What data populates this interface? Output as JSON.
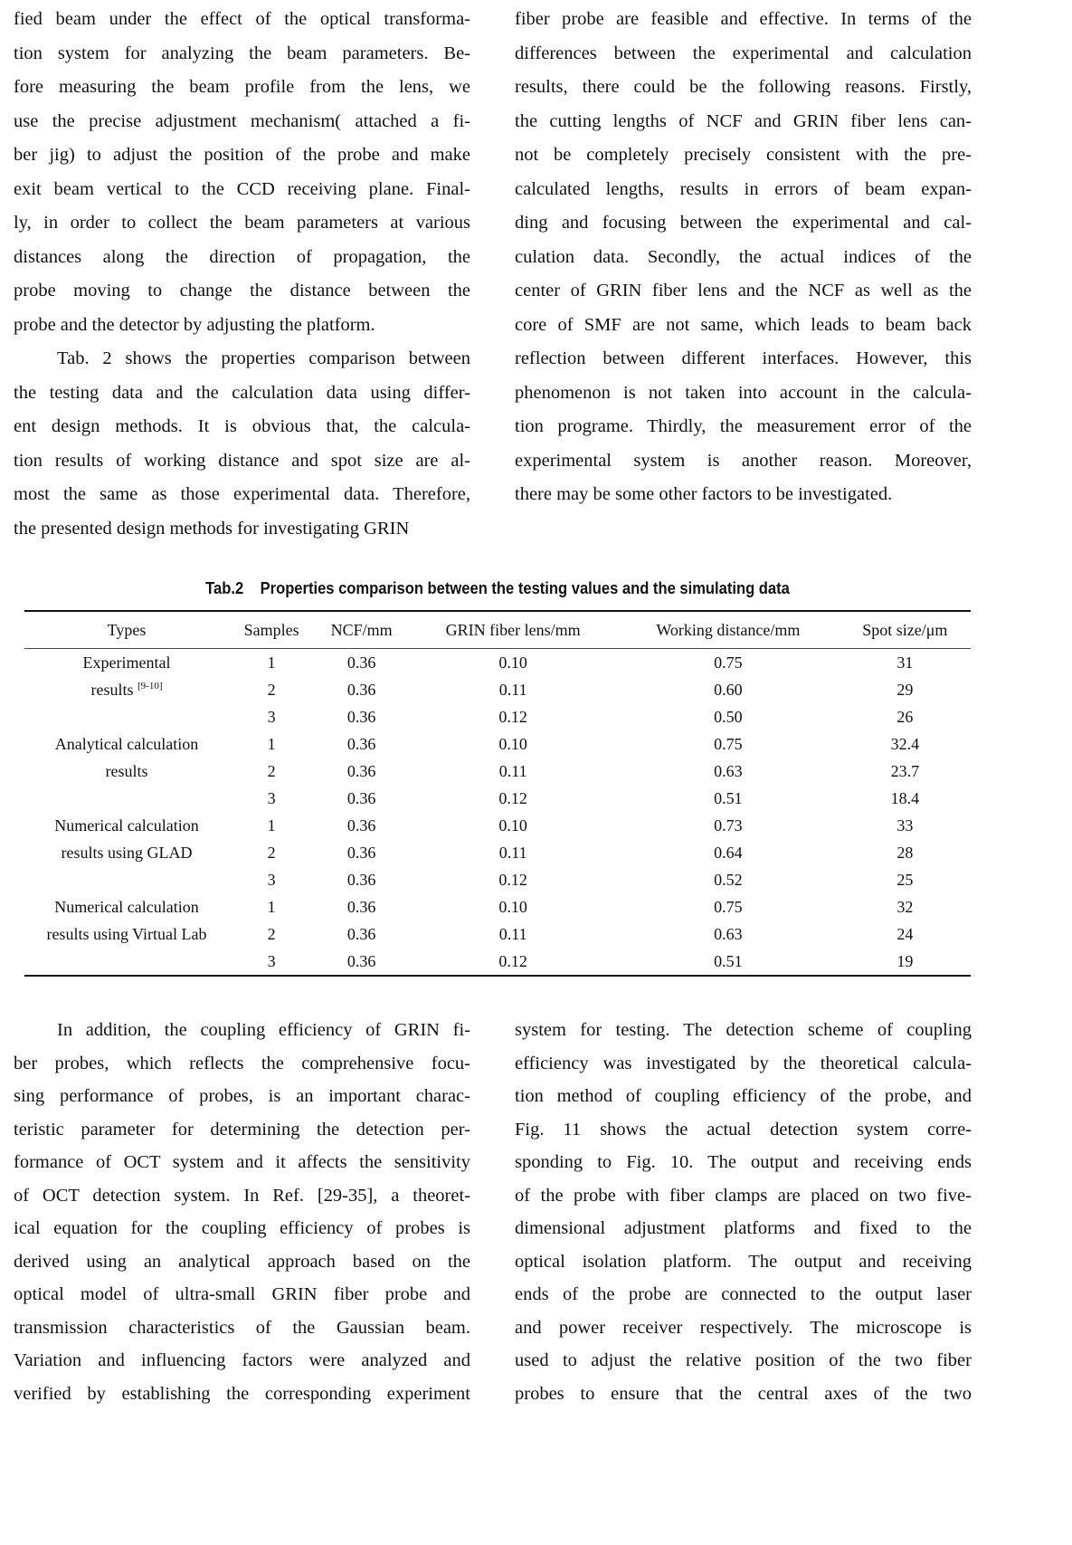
{
  "top_left": [
    "fied beam under the effect of the optical transforma-",
    "tion system for analyzing the beam parameters. Be-",
    "fore measuring the beam profile from the lens, we",
    "use the precise adjustment mechanism( attached a fi-",
    "ber jig) to adjust the position of the probe and make",
    "exit beam vertical to the CCD receiving plane. Final-",
    "ly, in order to collect the beam parameters at various",
    "distances along the direction of propagation, the",
    "probe moving to change the distance between the",
    "probe and the detector by adjusting the platform.",
    "Tab. 2 shows the properties comparison between",
    "the testing data and the calculation data using differ-",
    "ent design methods. It is obvious that, the calcula-",
    "tion results of working distance and spot size are al-",
    "most the same as those experimental data. Therefore,",
    "the presented design methods for investigating GRIN"
  ],
  "top_right": [
    "fiber probe are feasible and effective. In terms of the",
    "differences between the experimental and calculation",
    "results, there could be the following reasons. Firstly,",
    "the cutting lengths of NCF and GRIN fiber lens can-",
    "not be completely precisely consistent with the pre-",
    "calculated lengths, results in errors of beam expan-",
    "ding and focusing between the experimental and cal-",
    "culation data. Secondly, the actual indices of the",
    "center of GRIN fiber lens and the NCF as well as the",
    "core of SMF are not same, which leads to beam back",
    "reflection between different interfaces. However, this",
    "phenomenon is not taken into account in the calcula-",
    "tion programe. Thirdly, the measurement error of the",
    "experimental system is another reason. Moreover,",
    "there may be some other factors to be investigated."
  ],
  "table": {
    "label": "Tab.2",
    "caption": "Properties comparison between the testing values and the simulating data",
    "headers": [
      "Types",
      "Samples",
      "NCF/mm",
      "GRIN fiber lens/mm",
      "Working distance/mm",
      "Spot size/μm"
    ],
    "groups": [
      {
        "type_lines": [
          "Experimental",
          "results"
        ],
        "ref": "[9-10]",
        "rows": [
          [
            "1",
            "0.36",
            "0.10",
            "0.75",
            "31"
          ],
          [
            "2",
            "0.36",
            "0.11",
            "0.60",
            "29"
          ],
          [
            "3",
            "0.36",
            "0.12",
            "0.50",
            "26"
          ]
        ]
      },
      {
        "type_lines": [
          "Analytical calculation",
          "results"
        ],
        "rows": [
          [
            "1",
            "0.36",
            "0.10",
            "0.75",
            "32.4"
          ],
          [
            "2",
            "0.36",
            "0.11",
            "0.63",
            "23.7"
          ],
          [
            "3",
            "0.36",
            "0.12",
            "0.51",
            "18.4"
          ]
        ]
      },
      {
        "type_lines": [
          "Numerical calculation",
          "results using GLAD"
        ],
        "rows": [
          [
            "1",
            "0.36",
            "0.10",
            "0.73",
            "33"
          ],
          [
            "2",
            "0.36",
            "0.11",
            "0.64",
            "28"
          ],
          [
            "3",
            "0.36",
            "0.12",
            "0.52",
            "25"
          ]
        ]
      },
      {
        "type_lines": [
          "Numerical calculation",
          "results using Virtual Lab"
        ],
        "rows": [
          [
            "1",
            "0.36",
            "0.10",
            "0.75",
            "32"
          ],
          [
            "2",
            "0.36",
            "0.11",
            "0.63",
            "24"
          ],
          [
            "3",
            "0.36",
            "0.12",
            "0.51",
            "19"
          ]
        ]
      }
    ]
  },
  "bottom_left": [
    "In addition, the coupling efficiency of GRIN fi-",
    "ber probes, which reflects the comprehensive focu-",
    "sing performance of probes, is an important charac-",
    "teristic parameter for determining the detection per-",
    "formance of OCT system and it affects the sensitivity",
    "of OCT detection system. In Ref. [29-35], a theoret-",
    "ical equation for the coupling efficiency of probes is",
    "derived using an analytical approach based on the",
    "optical model of ultra-small GRIN fiber probe and",
    "transmission characteristics of the Gaussian beam.",
    "Variation and influencing factors were analyzed and",
    "verified by establishing the corresponding experiment"
  ],
  "bottom_right": [
    "system for testing. The detection scheme of coupling",
    "efficiency was investigated by the theoretical calcula-",
    "tion method of coupling efficiency of the probe, and",
    "Fig. 11 shows the actual detection system corre-",
    "sponding to Fig. 10. The output and receiving ends",
    "of the probe with fiber clamps are placed on two five-",
    "dimensional adjustment platforms and fixed to the",
    "optical isolation platform. The output and receiving",
    "ends of the probe are connected to the output laser",
    "and power receiver respectively. The microscope is",
    "used to adjust the relative position of the two fiber",
    "probes to ensure that the central axes of the two"
  ]
}
